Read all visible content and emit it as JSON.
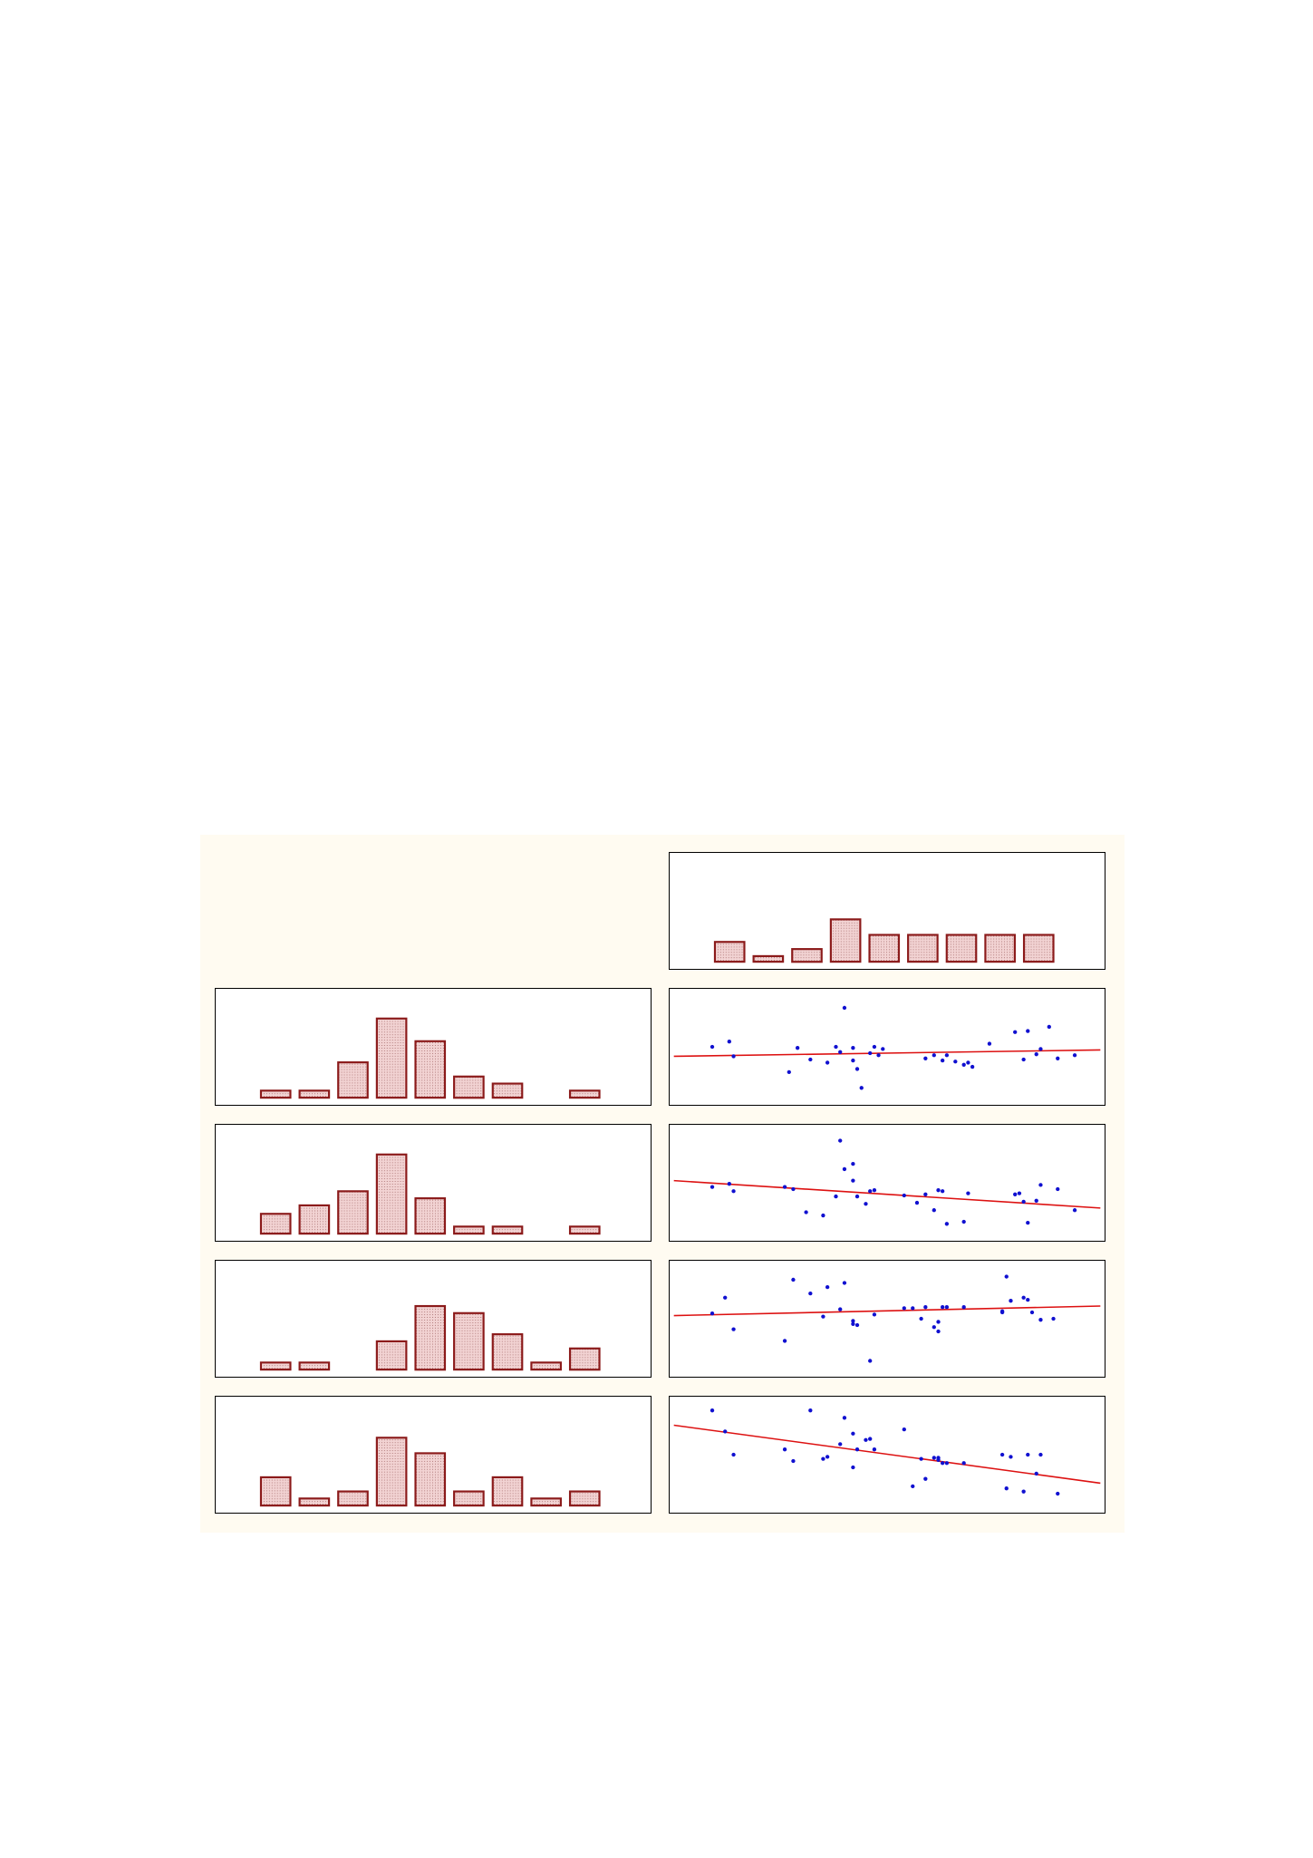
{
  "colors": {
    "background": "#ffffff",
    "figure_background": "#fffbf1",
    "panel_background": "#ffffff",
    "bar_fill": "#f2d3d3",
    "bar_stroke": "#8b1a1a",
    "point": "#1010d0",
    "fit_line": "#dd1111"
  },
  "chart_data": [
    {
      "id": "top-right-histogram",
      "type": "bar",
      "cell": [
        0,
        1
      ],
      "categories": [
        1,
        2,
        3,
        4,
        5,
        6,
        7,
        8,
        9
      ],
      "values": [
        7,
        2,
        4.5,
        15,
        9.5,
        9.5,
        9.5,
        9.5,
        9.5
      ],
      "ylim": [
        0,
        36
      ],
      "title": "",
      "xlabel": "",
      "ylabel": "",
      "grid": false
    },
    {
      "id": "row1-histogram",
      "type": "bar",
      "cell": [
        1,
        0
      ],
      "categories": [
        1,
        2,
        3,
        4,
        5,
        6,
        7,
        8,
        9
      ],
      "values": [
        2.5,
        2.5,
        12.5,
        28,
        20,
        7.5,
        5,
        0,
        2.5
      ],
      "ylim": [
        0,
        36
      ],
      "title": "",
      "xlabel": "",
      "ylabel": "",
      "grid": false
    },
    {
      "id": "row1-scatter",
      "type": "scatter",
      "cell": [
        1,
        1
      ],
      "x": [
        0.09,
        0.13,
        0.14,
        0.27,
        0.29,
        0.32,
        0.36,
        0.38,
        0.39,
        0.4,
        0.42,
        0.42,
        0.43,
        0.44,
        0.46,
        0.47,
        0.48,
        0.49,
        0.59,
        0.61,
        0.63,
        0.64,
        0.66,
        0.68,
        0.69,
        0.7,
        0.74,
        0.8,
        0.82,
        0.83,
        0.85,
        0.86,
        0.88,
        0.9,
        0.94
      ],
      "y": [
        0.5,
        0.55,
        0.41,
        0.26,
        0.49,
        0.38,
        0.35,
        0.5,
        0.45,
        0.87,
        0.49,
        0.37,
        0.29,
        0.11,
        0.44,
        0.5,
        0.42,
        0.48,
        0.39,
        0.42,
        0.37,
        0.42,
        0.36,
        0.33,
        0.35,
        0.31,
        0.53,
        0.64,
        0.38,
        0.65,
        0.43,
        0.48,
        0.69,
        0.39,
        0.42
      ],
      "fit": {
        "x": [
          0,
          1
        ],
        "y": [
          0.41,
          0.47
        ]
      },
      "xlim": [
        0,
        1
      ],
      "ylim": [
        0,
        1
      ],
      "title": "",
      "xlabel": "",
      "ylabel": "",
      "grid": false
    },
    {
      "id": "row2-histogram",
      "type": "bar",
      "cell": [
        2,
        0
      ],
      "categories": [
        1,
        2,
        3,
        4,
        5,
        6,
        7,
        8,
        9
      ],
      "values": [
        7,
        10,
        15,
        28,
        12.5,
        2.5,
        2.5,
        0,
        2.5
      ],
      "ylim": [
        0,
        36
      ],
      "title": "",
      "xlabel": "",
      "ylabel": "",
      "grid": false
    },
    {
      "id": "row2-scatter",
      "type": "scatter",
      "cell": [
        2,
        1
      ],
      "x": [
        0.09,
        0.13,
        0.14,
        0.26,
        0.28,
        0.31,
        0.35,
        0.38,
        0.39,
        0.4,
        0.42,
        0.42,
        0.43,
        0.45,
        0.46,
        0.47,
        0.54,
        0.57,
        0.59,
        0.61,
        0.62,
        0.63,
        0.64,
        0.68,
        0.69,
        0.8,
        0.81,
        0.82,
        0.83,
        0.85,
        0.86,
        0.9,
        0.94
      ],
      "y": [
        0.46,
        0.49,
        0.42,
        0.46,
        0.44,
        0.22,
        0.19,
        0.37,
        0.9,
        0.63,
        0.52,
        0.68,
        0.37,
        0.3,
        0.42,
        0.43,
        0.38,
        0.31,
        0.39,
        0.24,
        0.43,
        0.42,
        0.11,
        0.13,
        0.4,
        0.39,
        0.4,
        0.32,
        0.12,
        0.33,
        0.48,
        0.44,
        0.24
      ],
      "fit": {
        "x": [
          0,
          1
        ],
        "y": [
          0.52,
          0.26
        ]
      },
      "xlim": [
        0,
        1
      ],
      "ylim": [
        0,
        1
      ],
      "title": "",
      "xlabel": "",
      "ylabel": "",
      "grid": false
    },
    {
      "id": "row3-histogram",
      "type": "bar",
      "cell": [
        3,
        0
      ],
      "categories": [
        1,
        2,
        3,
        4,
        5,
        6,
        7,
        8,
        9
      ],
      "values": [
        2.5,
        2.5,
        0,
        10,
        22.5,
        20,
        12.5,
        2.5,
        7.5
      ],
      "ylim": [
        0,
        36
      ],
      "title": "",
      "xlabel": "",
      "ylabel": "",
      "grid": false
    },
    {
      "id": "row3-scatter",
      "type": "scatter",
      "cell": [
        3,
        1
      ],
      "x": [
        0.09,
        0.12,
        0.14,
        0.26,
        0.28,
        0.32,
        0.35,
        0.36,
        0.39,
        0.4,
        0.42,
        0.42,
        0.43,
        0.46,
        0.47,
        0.54,
        0.56,
        0.58,
        0.59,
        0.61,
        0.62,
        0.62,
        0.63,
        0.64,
        0.68,
        0.77,
        0.77,
        0.78,
        0.79,
        0.82,
        0.83,
        0.84,
        0.86,
        0.89
      ],
      "y": [
        0.55,
        0.7,
        0.4,
        0.29,
        0.87,
        0.74,
        0.52,
        0.8,
        0.59,
        0.84,
        0.48,
        0.45,
        0.44,
        0.1,
        0.54,
        0.6,
        0.6,
        0.5,
        0.61,
        0.42,
        0.47,
        0.38,
        0.61,
        0.61,
        0.61,
        0.56,
        0.57,
        0.9,
        0.67,
        0.7,
        0.68,
        0.56,
        0.49,
        0.5
      ],
      "fit": {
        "x": [
          0,
          1
        ],
        "y": [
          0.53,
          0.62
        ]
      },
      "xlim": [
        0,
        1
      ],
      "ylim": [
        0,
        1
      ],
      "title": "",
      "xlabel": "",
      "ylabel": "",
      "grid": false
    },
    {
      "id": "row4-histogram",
      "type": "bar",
      "cell": [
        4,
        0
      ],
      "categories": [
        1,
        2,
        3,
        4,
        5,
        6,
        7,
        8,
        9
      ],
      "values": [
        10,
        2.5,
        5,
        24,
        18.5,
        5,
        10,
        2.5,
        5
      ],
      "ylim": [
        0,
        36
      ],
      "title": "",
      "xlabel": "",
      "ylabel": "",
      "grid": false
    },
    {
      "id": "row4-scatter",
      "type": "scatter",
      "cell": [
        4,
        1
      ],
      "x": [
        0.09,
        0.12,
        0.14,
        0.26,
        0.28,
        0.32,
        0.35,
        0.36,
        0.39,
        0.4,
        0.42,
        0.42,
        0.43,
        0.45,
        0.46,
        0.47,
        0.54,
        0.56,
        0.58,
        0.59,
        0.61,
        0.62,
        0.62,
        0.63,
        0.64,
        0.68,
        0.77,
        0.78,
        0.79,
        0.82,
        0.83,
        0.85,
        0.86,
        0.9
      ],
      "y": [
        0.92,
        0.72,
        0.5,
        0.55,
        0.44,
        0.92,
        0.46,
        0.48,
        0.6,
        0.85,
        0.7,
        0.38,
        0.55,
        0.64,
        0.65,
        0.55,
        0.74,
        0.2,
        0.46,
        0.27,
        0.47,
        0.45,
        0.47,
        0.42,
        0.42,
        0.42,
        0.5,
        0.18,
        0.48,
        0.15,
        0.5,
        0.32,
        0.5,
        0.13
      ],
      "fit": {
        "x": [
          0,
          1
        ],
        "y": [
          0.78,
          0.23
        ]
      },
      "xlim": [
        0,
        1
      ],
      "ylim": [
        0,
        1
      ],
      "title": "",
      "xlabel": "",
      "ylabel": "",
      "grid": false
    }
  ]
}
